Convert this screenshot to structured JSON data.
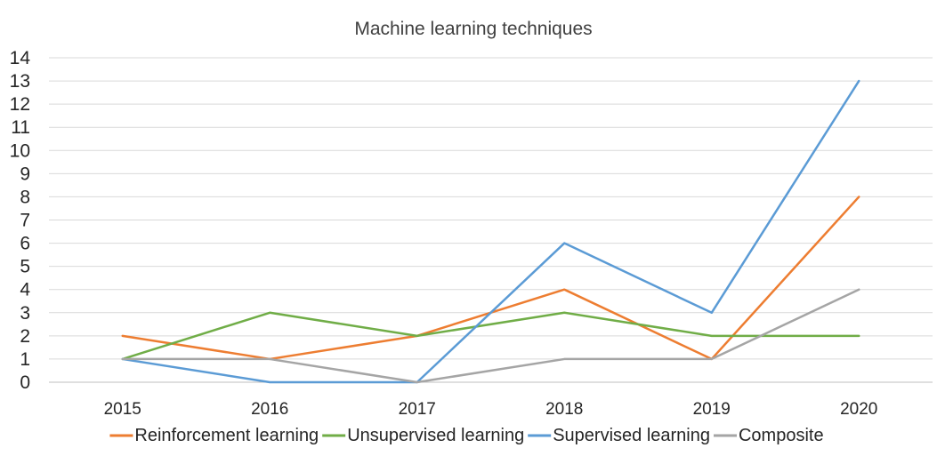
{
  "chart_data": {
    "type": "line",
    "title": "Machine learning techniques",
    "xlabel": "",
    "ylabel": "",
    "categories": [
      "2015",
      "2016",
      "2017",
      "2018",
      "2019",
      "2020"
    ],
    "ylim": [
      0,
      14
    ],
    "yticks": [
      "0",
      "1",
      "2",
      "3",
      "4",
      "5",
      "6",
      "7",
      "8",
      "9",
      "10",
      "11",
      "12",
      "13",
      "14"
    ],
    "grid": true,
    "legend_position": "bottom",
    "series": [
      {
        "name": "Reinforcement learning",
        "color": "#ED7D31",
        "values": [
          2,
          1,
          2,
          4,
          1,
          8
        ]
      },
      {
        "name": "Unsupervised learning",
        "color": "#70AD47",
        "values": [
          1,
          3,
          2,
          3,
          2,
          2
        ]
      },
      {
        "name": "Supervised learning",
        "color": "#5B9BD5",
        "values": [
          1,
          0,
          0,
          6,
          3,
          13
        ]
      },
      {
        "name": "Composite",
        "color": "#A5A5A5",
        "values": [
          1,
          1,
          0,
          1,
          1,
          4
        ]
      }
    ]
  }
}
